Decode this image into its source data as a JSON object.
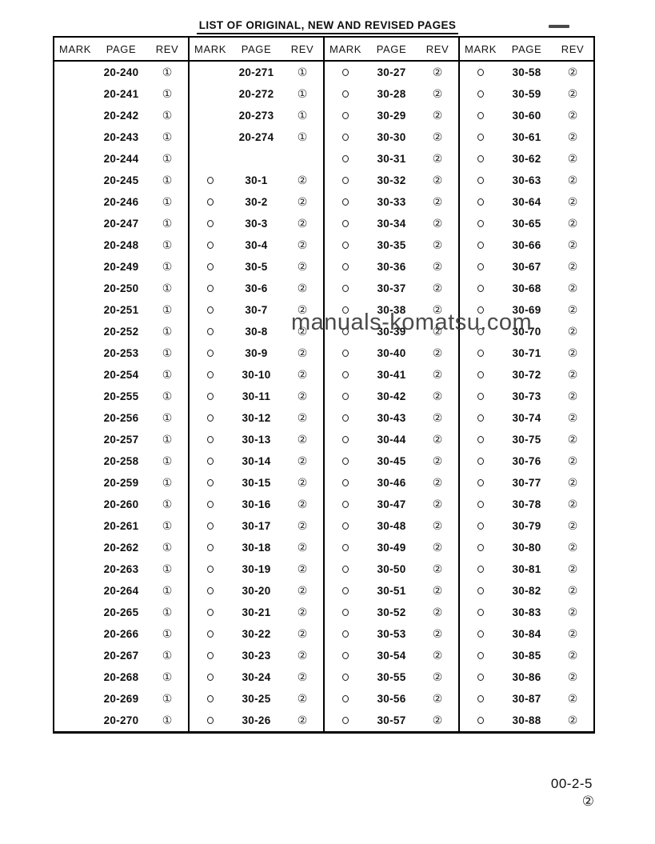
{
  "document": {
    "title": "LIST OF ORIGINAL, NEW AND REVISED PAGES",
    "watermark": "manuals-komatsu.com",
    "footer": {
      "page_number": "00-2-5",
      "revision_mark": "②"
    }
  },
  "table": {
    "headers": [
      "MARK",
      "PAGE",
      "REV"
    ],
    "groups": [
      {
        "rows": [
          {
            "mark": false,
            "page": "20-240",
            "rev": "①"
          },
          {
            "mark": false,
            "page": "20-241",
            "rev": "①"
          },
          {
            "mark": false,
            "page": "20-242",
            "rev": "①"
          },
          {
            "mark": false,
            "page": "20-243",
            "rev": "①"
          },
          {
            "mark": false,
            "page": "20-244",
            "rev": "①"
          },
          {
            "mark": false,
            "page": "20-245",
            "rev": "①"
          },
          {
            "mark": false,
            "page": "20-246",
            "rev": "①"
          },
          {
            "mark": false,
            "page": "20-247",
            "rev": "①"
          },
          {
            "mark": false,
            "page": "20-248",
            "rev": "①"
          },
          {
            "mark": false,
            "page": "20-249",
            "rev": "①"
          },
          {
            "mark": false,
            "page": "20-250",
            "rev": "①"
          },
          {
            "mark": false,
            "page": "20-251",
            "rev": "①"
          },
          {
            "mark": false,
            "page": "20-252",
            "rev": "①"
          },
          {
            "mark": false,
            "page": "20-253",
            "rev": "①"
          },
          {
            "mark": false,
            "page": "20-254",
            "rev": "①"
          },
          {
            "mark": false,
            "page": "20-255",
            "rev": "①"
          },
          {
            "mark": false,
            "page": "20-256",
            "rev": "①"
          },
          {
            "mark": false,
            "page": "20-257",
            "rev": "①"
          },
          {
            "mark": false,
            "page": "20-258",
            "rev": "①"
          },
          {
            "mark": false,
            "page": "20-259",
            "rev": "①"
          },
          {
            "mark": false,
            "page": "20-260",
            "rev": "①"
          },
          {
            "mark": false,
            "page": "20-261",
            "rev": "①"
          },
          {
            "mark": false,
            "page": "20-262",
            "rev": "①"
          },
          {
            "mark": false,
            "page": "20-263",
            "rev": "①"
          },
          {
            "mark": false,
            "page": "20-264",
            "rev": "①"
          },
          {
            "mark": false,
            "page": "20-265",
            "rev": "①"
          },
          {
            "mark": false,
            "page": "20-266",
            "rev": "①"
          },
          {
            "mark": false,
            "page": "20-267",
            "rev": "①"
          },
          {
            "mark": false,
            "page": "20-268",
            "rev": "①"
          },
          {
            "mark": false,
            "page": "20-269",
            "rev": "①"
          },
          {
            "mark": false,
            "page": "20-270",
            "rev": "①"
          }
        ]
      },
      {
        "rows": [
          {
            "mark": false,
            "page": "20-271",
            "rev": "①"
          },
          {
            "mark": false,
            "page": "20-272",
            "rev": "①"
          },
          {
            "mark": false,
            "page": "20-273",
            "rev": "①"
          },
          {
            "mark": false,
            "page": "20-274",
            "rev": "①"
          },
          {
            "mark": false,
            "page": "",
            "rev": ""
          },
          {
            "mark": true,
            "page": "30-1",
            "rev": "②"
          },
          {
            "mark": true,
            "page": "30-2",
            "rev": "②"
          },
          {
            "mark": true,
            "page": "30-3",
            "rev": "②"
          },
          {
            "mark": true,
            "page": "30-4",
            "rev": "②"
          },
          {
            "mark": true,
            "page": "30-5",
            "rev": "②"
          },
          {
            "mark": true,
            "page": "30-6",
            "rev": "②"
          },
          {
            "mark": true,
            "page": "30-7",
            "rev": "②"
          },
          {
            "mark": true,
            "page": "30-8",
            "rev": "②"
          },
          {
            "mark": true,
            "page": "30-9",
            "rev": "②"
          },
          {
            "mark": true,
            "page": "30-10",
            "rev": "②"
          },
          {
            "mark": true,
            "page": "30-11",
            "rev": "②"
          },
          {
            "mark": true,
            "page": "30-12",
            "rev": "②"
          },
          {
            "mark": true,
            "page": "30-13",
            "rev": "②"
          },
          {
            "mark": true,
            "page": "30-14",
            "rev": "②"
          },
          {
            "mark": true,
            "page": "30-15",
            "rev": "②"
          },
          {
            "mark": true,
            "page": "30-16",
            "rev": "②"
          },
          {
            "mark": true,
            "page": "30-17",
            "rev": "②"
          },
          {
            "mark": true,
            "page": "30-18",
            "rev": "②"
          },
          {
            "mark": true,
            "page": "30-19",
            "rev": "②"
          },
          {
            "mark": true,
            "page": "30-20",
            "rev": "②"
          },
          {
            "mark": true,
            "page": "30-21",
            "rev": "②"
          },
          {
            "mark": true,
            "page": "30-22",
            "rev": "②"
          },
          {
            "mark": true,
            "page": "30-23",
            "rev": "②"
          },
          {
            "mark": true,
            "page": "30-24",
            "rev": "②"
          },
          {
            "mark": true,
            "page": "30-25",
            "rev": "②"
          },
          {
            "mark": true,
            "page": "30-26",
            "rev": "②"
          }
        ]
      },
      {
        "rows": [
          {
            "mark": true,
            "page": "30-27",
            "rev": "②"
          },
          {
            "mark": true,
            "page": "30-28",
            "rev": "②"
          },
          {
            "mark": true,
            "page": "30-29",
            "rev": "②"
          },
          {
            "mark": true,
            "page": "30-30",
            "rev": "②"
          },
          {
            "mark": true,
            "page": "30-31",
            "rev": "②"
          },
          {
            "mark": true,
            "page": "30-32",
            "rev": "②"
          },
          {
            "mark": true,
            "page": "30-33",
            "rev": "②"
          },
          {
            "mark": true,
            "page": "30-34",
            "rev": "②"
          },
          {
            "mark": true,
            "page": "30-35",
            "rev": "②"
          },
          {
            "mark": true,
            "page": "30-36",
            "rev": "②"
          },
          {
            "mark": true,
            "page": "30-37",
            "rev": "②"
          },
          {
            "mark": true,
            "page": "30-38",
            "rev": "②"
          },
          {
            "mark": true,
            "page": "30-39",
            "rev": "②"
          },
          {
            "mark": true,
            "page": "30-40",
            "rev": "②"
          },
          {
            "mark": true,
            "page": "30-41",
            "rev": "②"
          },
          {
            "mark": true,
            "page": "30-42",
            "rev": "②"
          },
          {
            "mark": true,
            "page": "30-43",
            "rev": "②"
          },
          {
            "mark": true,
            "page": "30-44",
            "rev": "②"
          },
          {
            "mark": true,
            "page": "30-45",
            "rev": "②"
          },
          {
            "mark": true,
            "page": "30-46",
            "rev": "②"
          },
          {
            "mark": true,
            "page": "30-47",
            "rev": "②"
          },
          {
            "mark": true,
            "page": "30-48",
            "rev": "②"
          },
          {
            "mark": true,
            "page": "30-49",
            "rev": "②"
          },
          {
            "mark": true,
            "page": "30-50",
            "rev": "②"
          },
          {
            "mark": true,
            "page": "30-51",
            "rev": "②"
          },
          {
            "mark": true,
            "page": "30-52",
            "rev": "②"
          },
          {
            "mark": true,
            "page": "30-53",
            "rev": "②"
          },
          {
            "mark": true,
            "page": "30-54",
            "rev": "②"
          },
          {
            "mark": true,
            "page": "30-55",
            "rev": "②"
          },
          {
            "mark": true,
            "page": "30-56",
            "rev": "②"
          },
          {
            "mark": true,
            "page": "30-57",
            "rev": "②"
          }
        ]
      },
      {
        "rows": [
          {
            "mark": true,
            "page": "30-58",
            "rev": "②"
          },
          {
            "mark": true,
            "page": "30-59",
            "rev": "②"
          },
          {
            "mark": true,
            "page": "30-60",
            "rev": "②"
          },
          {
            "mark": true,
            "page": "30-61",
            "rev": "②"
          },
          {
            "mark": true,
            "page": "30-62",
            "rev": "②"
          },
          {
            "mark": true,
            "page": "30-63",
            "rev": "②"
          },
          {
            "mark": true,
            "page": "30-64",
            "rev": "②"
          },
          {
            "mark": true,
            "page": "30-65",
            "rev": "②"
          },
          {
            "mark": true,
            "page": "30-66",
            "rev": "②"
          },
          {
            "mark": true,
            "page": "30-67",
            "rev": "②"
          },
          {
            "mark": true,
            "page": "30-68",
            "rev": "②"
          },
          {
            "mark": true,
            "page": "30-69",
            "rev": "②"
          },
          {
            "mark": true,
            "page": "30-70",
            "rev": "②"
          },
          {
            "mark": true,
            "page": "30-71",
            "rev": "②"
          },
          {
            "mark": true,
            "page": "30-72",
            "rev": "②"
          },
          {
            "mark": true,
            "page": "30-73",
            "rev": "②"
          },
          {
            "mark": true,
            "page": "30-74",
            "rev": "②"
          },
          {
            "mark": true,
            "page": "30-75",
            "rev": "②"
          },
          {
            "mark": true,
            "page": "30-76",
            "rev": "②"
          },
          {
            "mark": true,
            "page": "30-77",
            "rev": "②"
          },
          {
            "mark": true,
            "page": "30-78",
            "rev": "②"
          },
          {
            "mark": true,
            "page": "30-79",
            "rev": "②"
          },
          {
            "mark": true,
            "page": "30-80",
            "rev": "②"
          },
          {
            "mark": true,
            "page": "30-81",
            "rev": "②"
          },
          {
            "mark": true,
            "page": "30-82",
            "rev": "②"
          },
          {
            "mark": true,
            "page": "30-83",
            "rev": "②"
          },
          {
            "mark": true,
            "page": "30-84",
            "rev": "②"
          },
          {
            "mark": true,
            "page": "30-85",
            "rev": "②"
          },
          {
            "mark": true,
            "page": "30-86",
            "rev": "②"
          },
          {
            "mark": true,
            "page": "30-87",
            "rev": "②"
          },
          {
            "mark": true,
            "page": "30-88",
            "rev": "②"
          }
        ]
      }
    ]
  }
}
